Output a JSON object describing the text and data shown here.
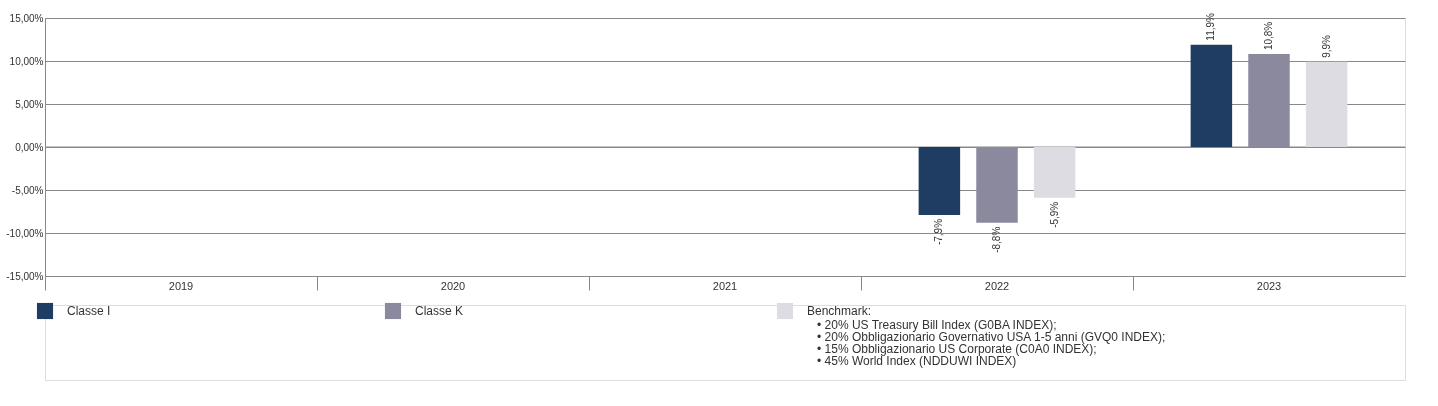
{
  "chart_data": {
    "type": "bar",
    "categories": [
      "2019",
      "2020",
      "2021",
      "2022",
      "2023"
    ],
    "series": [
      {
        "name": "Classe I",
        "color": "#1f3d63",
        "values": [
          null,
          null,
          null,
          -7.9,
          11.9
        ],
        "value_labels": [
          null,
          null,
          null,
          "-7,9%",
          "11,9%"
        ]
      },
      {
        "name": "Classe K",
        "color": "#8a899e",
        "values": [
          null,
          null,
          null,
          -8.8,
          10.8
        ],
        "value_labels": [
          null,
          null,
          null,
          "-8,8%",
          "10,8%"
        ]
      },
      {
        "name": "Benchmark:",
        "color": "#dcdce2",
        "values": [
          null,
          null,
          null,
          -5.9,
          9.9
        ],
        "value_labels": [
          null,
          null,
          null,
          "-5,9%",
          "9,9%"
        ]
      }
    ],
    "ylim": [
      -15,
      15
    ],
    "yticks": [
      {
        "value": -15,
        "label": "-15,00%"
      },
      {
        "value": -10,
        "label": "-10,00%"
      },
      {
        "value": -5,
        "label": "-5,00%"
      },
      {
        "value": 0,
        "label": "0,00%"
      },
      {
        "value": 5,
        "label": "5,00%"
      },
      {
        "value": 10,
        "label": "10,00%"
      },
      {
        "value": 15,
        "label": "15,00%"
      }
    ],
    "grid": "y",
    "legend": "bottom",
    "annotations": [
      "• 20%  US Treasury Bill Index (G0BA INDEX);",
      "• 20% Obbligazionario Governativo USA 1-5 anni (GVQ0 INDEX);",
      "• 15% Obbligazionario US Corporate (C0A0 INDEX);",
      "• 45% World Index (NDDUWI INDEX)"
    ]
  }
}
